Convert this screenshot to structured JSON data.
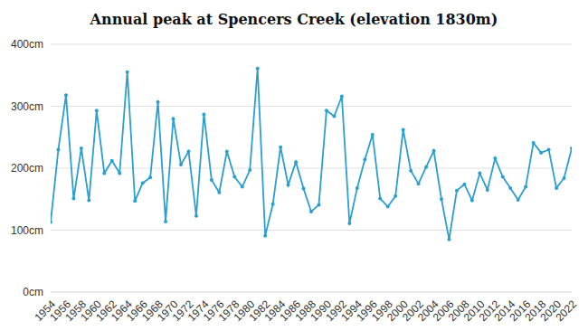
{
  "chart_data": {
    "type": "line",
    "title": "Annual peak at Spencers Creek (elevation 1830m)",
    "x": [
      1954,
      1955,
      1956,
      1957,
      1958,
      1959,
      1960,
      1961,
      1962,
      1963,
      1964,
      1965,
      1966,
      1967,
      1968,
      1969,
      1970,
      1971,
      1972,
      1973,
      1974,
      1975,
      1976,
      1977,
      1978,
      1979,
      1980,
      1981,
      1982,
      1983,
      1984,
      1985,
      1986,
      1987,
      1988,
      1989,
      1990,
      1991,
      1992,
      1993,
      1994,
      1995,
      1996,
      1997,
      1998,
      1999,
      2000,
      2001,
      2002,
      2003,
      2004,
      2005,
      2006,
      2007,
      2008,
      2009,
      2010,
      2011,
      2012,
      2013,
      2014,
      2015,
      2016,
      2017,
      2018,
      2019,
      2020,
      2021,
      2022
    ],
    "values": [
      113,
      230,
      318,
      151,
      232,
      148,
      293,
      192,
      212,
      192,
      355,
      147,
      176,
      185,
      307,
      114,
      280,
      206,
      227,
      123,
      287,
      181,
      161,
      227,
      186,
      170,
      197,
      361,
      91,
      142,
      234,
      173,
      210,
      167,
      130,
      141,
      293,
      284,
      316,
      111,
      168,
      214,
      254,
      151,
      138,
      155,
      262,
      196,
      175,
      202,
      228,
      150,
      85,
      164,
      174,
      148,
      192,
      165,
      216,
      186,
      168,
      149,
      170,
      241,
      225,
      230,
      168,
      184,
      232
    ],
    "color": "#2a9fd0",
    "marker": "circle",
    "xlim": [
      1954,
      2022
    ],
    "xticks": [
      1954,
      1956,
      1958,
      1960,
      1962,
      1964,
      1966,
      1968,
      1970,
      1972,
      1974,
      1976,
      1978,
      1980,
      1982,
      1984,
      1986,
      1988,
      1990,
      1992,
      1994,
      1996,
      1998,
      2000,
      2002,
      2004,
      2006,
      2008,
      2010,
      2012,
      2014,
      2016,
      2018,
      2020,
      2022
    ],
    "ylim": [
      0,
      400
    ],
    "yticks": [
      {
        "value": 0,
        "label": "0cm"
      },
      {
        "value": 100,
        "label": "100cm"
      },
      {
        "value": 200,
        "label": "200cm"
      },
      {
        "value": 300,
        "label": "300cm"
      },
      {
        "value": 400,
        "label": "400cm"
      }
    ],
    "grid": true
  }
}
